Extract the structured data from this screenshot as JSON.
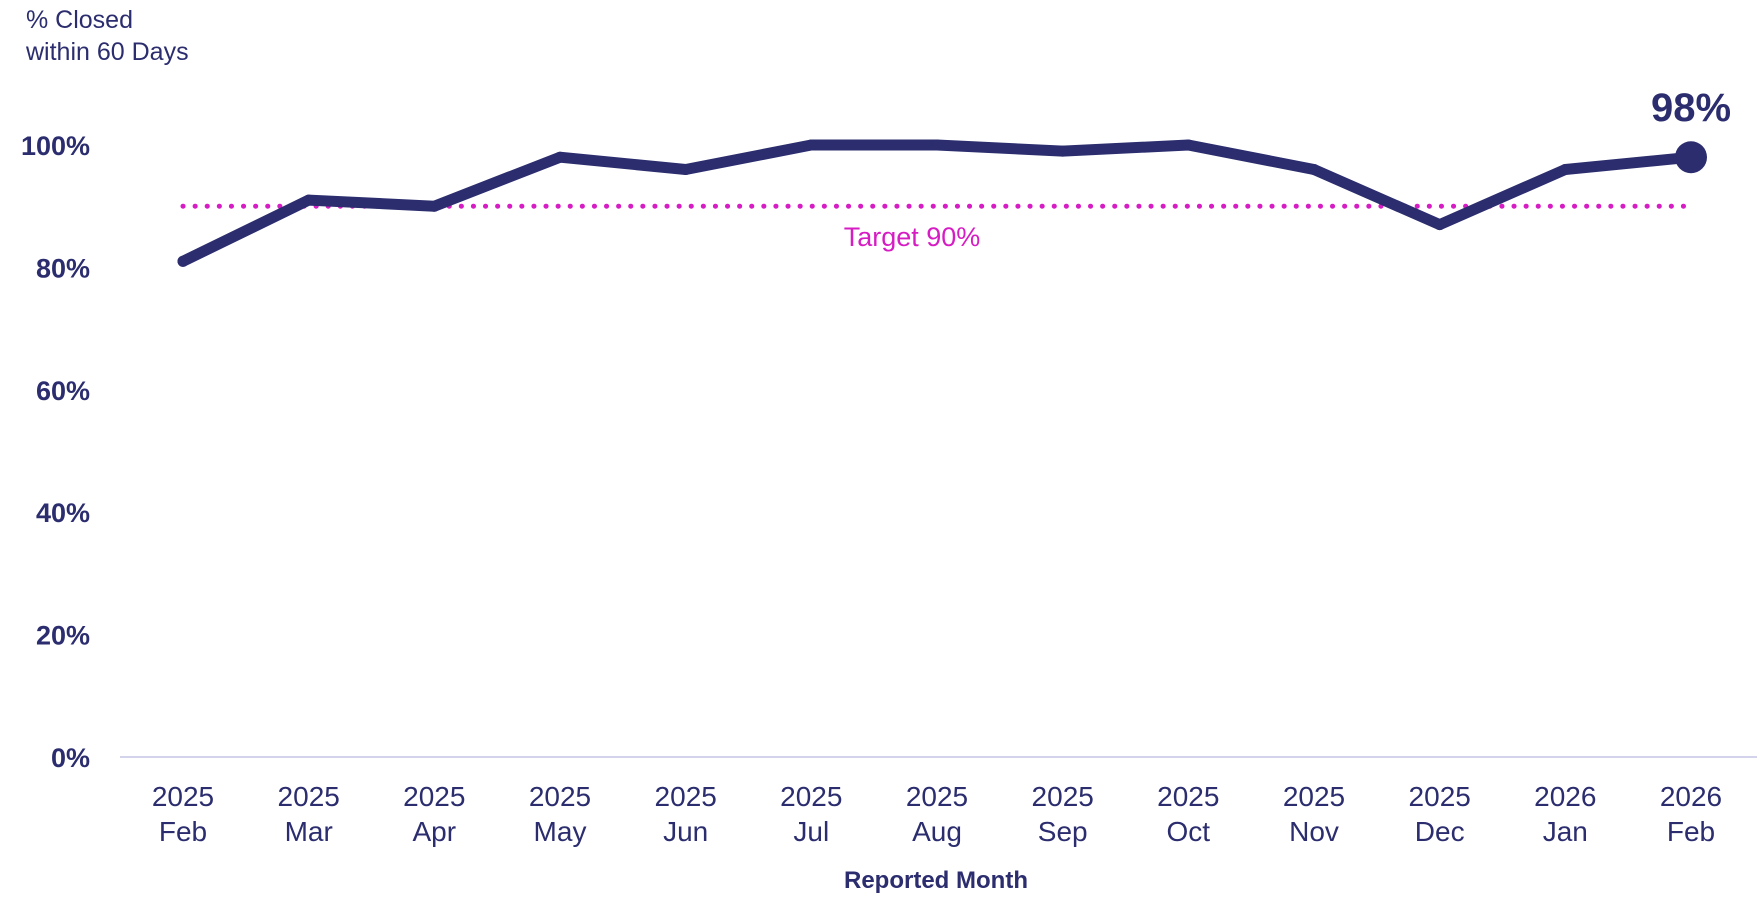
{
  "chart_data": {
    "type": "line",
    "ylabel_lines": [
      "% Closed",
      "within 60 Days"
    ],
    "xlabel": "Reported Month",
    "categories": [
      {
        "year": "2025",
        "month": "Feb"
      },
      {
        "year": "2025",
        "month": "Mar"
      },
      {
        "year": "2025",
        "month": "Apr"
      },
      {
        "year": "2025",
        "month": "May"
      },
      {
        "year": "2025",
        "month": "Jun"
      },
      {
        "year": "2025",
        "month": "Jul"
      },
      {
        "year": "2025",
        "month": "Aug"
      },
      {
        "year": "2025",
        "month": "Sep"
      },
      {
        "year": "2025",
        "month": "Oct"
      },
      {
        "year": "2025",
        "month": "Nov"
      },
      {
        "year": "2025",
        "month": "Dec"
      },
      {
        "year": "2026",
        "month": "Jan"
      },
      {
        "year": "2026",
        "month": "Feb"
      }
    ],
    "series": [
      {
        "values": [
          81,
          91,
          90,
          98,
          96,
          100,
          100,
          99,
          100,
          96,
          87,
          96,
          98
        ],
        "color": "#2b2d6e"
      }
    ],
    "last_value_label": "98%",
    "target": {
      "value": 90,
      "label": "Target 90%",
      "color": "#d61dc4",
      "style": "dotted"
    },
    "ylim": [
      0,
      100
    ],
    "yticks": [
      {
        "value": 0,
        "label": "0%"
      },
      {
        "value": 20,
        "label": "20%"
      },
      {
        "value": 40,
        "label": "40%"
      },
      {
        "value": 60,
        "label": "60%"
      },
      {
        "value": 80,
        "label": "80%"
      },
      {
        "value": 100,
        "label": "100%"
      }
    ],
    "grid": false,
    "baseline_color": "#d3d3ec"
  }
}
